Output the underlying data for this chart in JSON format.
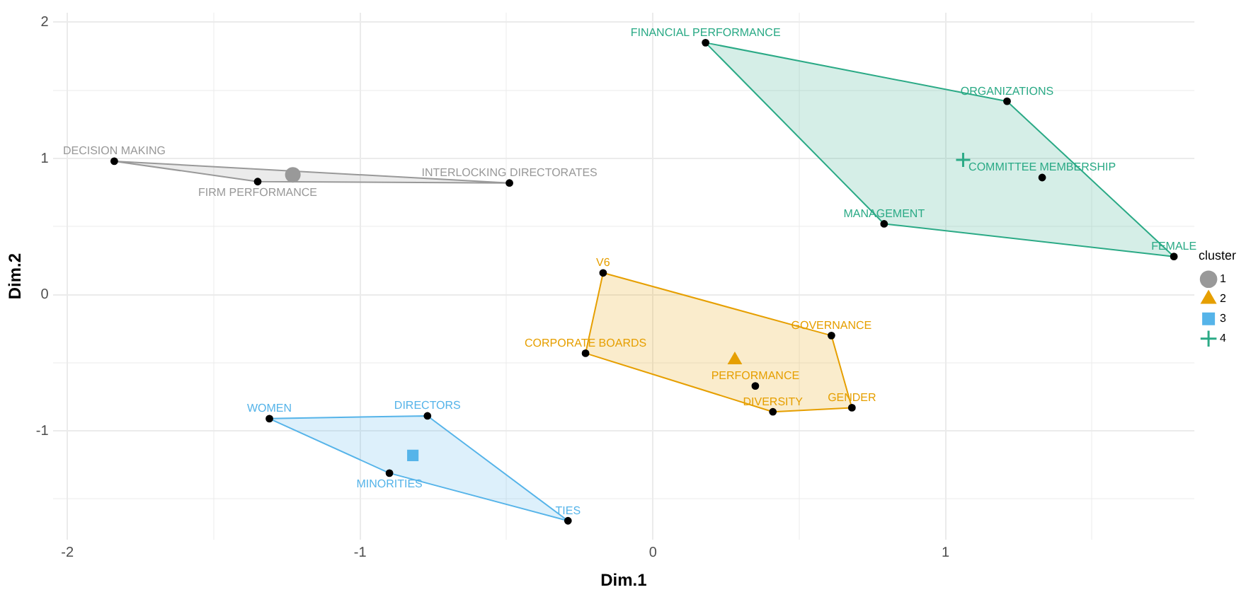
{
  "chart_data": {
    "type": "scatter",
    "xlabel": "Dim.1",
    "ylabel": "Dim.2",
    "legend_title": "cluster",
    "legend": "right",
    "grid": true,
    "xlim": [
      -2.05,
      1.85
    ],
    "ylim": [
      -1.8,
      2.07
    ],
    "xticks": [
      -2,
      {
        "value": -1.5,
        "label": null
      },
      -1,
      {
        "value": -0.5,
        "label": null
      },
      0,
      {
        "value": 0.5,
        "label": null
      },
      1,
      {
        "value": 1.5,
        "label": null
      }
    ],
    "yticks": [
      -1,
      {
        "value": -1.5,
        "label": null
      },
      {
        "value": -0.5,
        "label": null
      },
      0,
      {
        "value": 0.5,
        "label": null
      },
      1,
      {
        "value": 1.5,
        "label": null
      },
      2
    ],
    "series": [
      {
        "name": "1",
        "color": "#999999",
        "marker": "circle",
        "x": [
          -1.23
        ],
        "values": [
          0.88
        ]
      },
      {
        "color": "#000000",
        "marker": "circle",
        "x": [
          -1.84,
          -1.35,
          -0.49
        ],
        "values": [
          0.98,
          0.83,
          0.82
        ],
        "value_labels": [
          "DECISION MAKING",
          "FIRM PERFORMANCE",
          "INTERLOCKING DIRECTORATES"
        ]
      },
      {
        "type": "area",
        "color": "#999999",
        "x": [
          -1.84,
          -0.49,
          -1.35
        ],
        "values": [
          0.98,
          0.82,
          0.83
        ]
      },
      {
        "name": "2",
        "color": "#E69F00",
        "marker": "triangle",
        "x": [
          0.28
        ],
        "values": [
          -0.48
        ]
      },
      {
        "color": "#000000",
        "marker": "circle",
        "x": [
          -0.17,
          -0.23,
          0.61,
          0.35,
          0.41,
          0.68
        ],
        "values": [
          0.16,
          -0.43,
          -0.3,
          -0.67,
          -0.86,
          -0.83
        ],
        "value_labels": [
          "V6",
          "CORPORATE BOARDS",
          "GOVERNANCE",
          "PERFORMANCE",
          "DIVERSITY",
          "GENDER"
        ]
      },
      {
        "type": "area",
        "color": "#E69F00",
        "x": [
          -0.17,
          0.61,
          0.68,
          0.41,
          -0.23
        ],
        "values": [
          0.16,
          -0.3,
          -0.83,
          -0.86,
          -0.43
        ]
      },
      {
        "name": "3",
        "color": "#56B4E9",
        "marker": "square",
        "x": [
          -0.82
        ],
        "values": [
          -1.18
        ]
      },
      {
        "color": "#000000",
        "marker": "circle",
        "x": [
          -1.31,
          -0.77,
          -0.9,
          -0.29
        ],
        "values": [
          -0.91,
          -0.89,
          -1.31,
          -1.66
        ],
        "value_labels": [
          "WOMEN",
          "DIRECTORS",
          "MINORITIES",
          "TIES"
        ]
      },
      {
        "type": "area",
        "color": "#56B4E9",
        "x": [
          -1.31,
          -0.77,
          -0.29,
          -0.9
        ],
        "values": [
          -0.91,
          -0.89,
          -1.66,
          -1.31
        ]
      },
      {
        "name": "4",
        "color": "#2BAA86",
        "marker": "cross",
        "x": [
          1.06
        ],
        "values": [
          0.99
        ]
      },
      {
        "color": "#000000",
        "marker": "circle",
        "x": [
          0.18,
          1.21,
          1.33,
          0.79,
          1.78
        ],
        "values": [
          1.85,
          1.42,
          0.86,
          0.52,
          0.28
        ],
        "value_labels": [
          "FINANCIAL PERFORMANCE",
          "ORGANIZATIONS",
          "COMMITTEE MEMBERSHIP",
          "MANAGEMENT",
          "FEMALE"
        ]
      },
      {
        "type": "area",
        "color": "#2BAA86",
        "x": [
          0.18,
          1.21,
          1.78,
          0.79
        ],
        "values": [
          1.85,
          1.42,
          0.28,
          0.52
        ]
      }
    ]
  }
}
